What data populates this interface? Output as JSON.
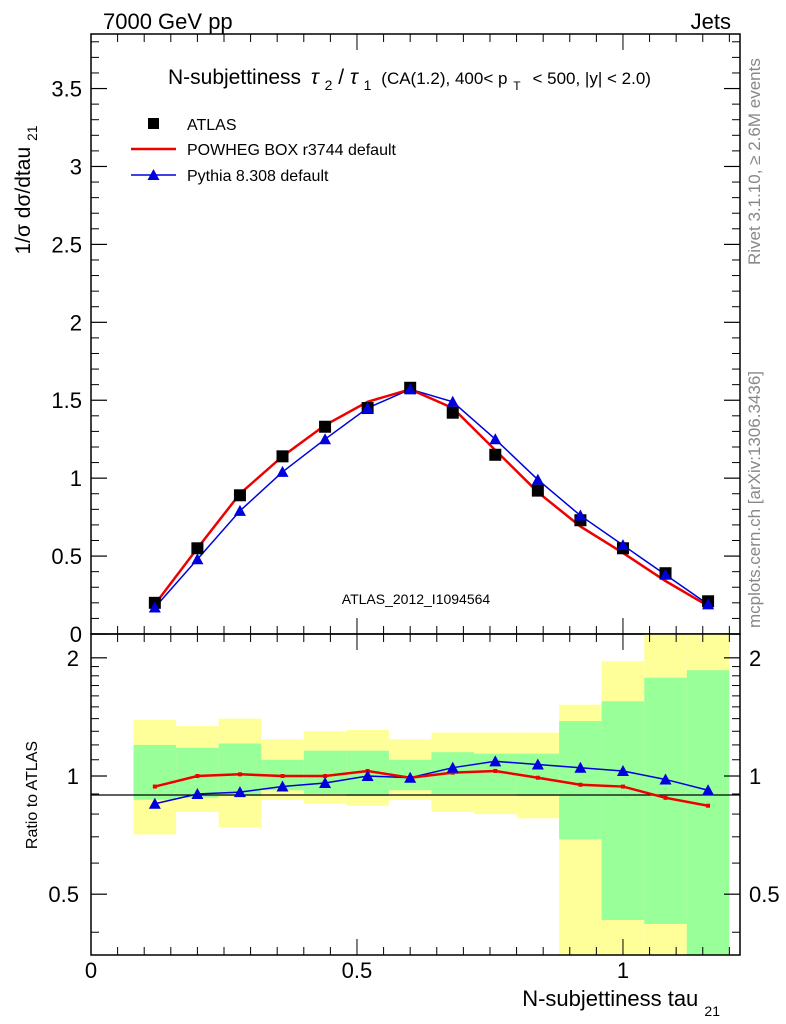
{
  "header": {
    "left": "7000 GeV pp",
    "right": "Jets",
    "plot_title_main": "N-subjettiness",
    "plot_title_tau_num": "2",
    "plot_title_tau_den": "1",
    "plot_title_rest_a": "(CA(1.2), 400< p",
    "plot_title_pt_sub": "T",
    "plot_title_rest_b": "< 500, |y| < 2.0)"
  },
  "side_labels": {
    "rivet": "Rivet 3.1.10, ≥ 2.6M events",
    "mcplots": "mcplots.cern.ch [arXiv:1306.3436]"
  },
  "analysis_label": "ATLAS_2012_I1094564",
  "colors": {
    "data": "#000000",
    "powheg": "#ee0000",
    "pythia": "#0000dd",
    "band_outer": "#ffff99",
    "band_inner": "#99ff99"
  },
  "chart_data": [
    {
      "type": "line",
      "panel": "main",
      "ylabel": "1/σ dσ/dtau",
      "ylabel_sub": "21",
      "xlim": [
        0,
        1.22
      ],
      "ylim": [
        0,
        3.85
      ],
      "x_ticks": [
        {
          "v": 0,
          "label": "0"
        },
        {
          "v": 0.5,
          "label": "0.5"
        },
        {
          "v": 1,
          "label": "1"
        }
      ],
      "y_ticks": [
        {
          "v": 0,
          "label": "0"
        },
        {
          "v": 0.5,
          "label": "0.5"
        },
        {
          "v": 1,
          "label": "1"
        },
        {
          "v": 1.5,
          "label": "1.5"
        },
        {
          "v": 2,
          "label": "2"
        },
        {
          "v": 2.5,
          "label": "2.5"
        },
        {
          "v": 3,
          "label": "3"
        },
        {
          "v": 3.5,
          "label": "3.5"
        }
      ],
      "x": [
        0.12,
        0.2,
        0.28,
        0.36,
        0.44,
        0.52,
        0.6,
        0.68,
        0.76,
        0.84,
        0.92,
        1.0,
        1.08,
        1.16
      ],
      "legend": [
        "ATLAS",
        "POWHEG BOX r3744 default",
        "Pythia 8.308 default"
      ],
      "legend_position": "top-left",
      "series": [
        {
          "name": "ATLAS",
          "style": "markers",
          "values": [
            0.2,
            0.55,
            0.89,
            1.14,
            1.33,
            1.45,
            1.58,
            1.42,
            1.15,
            0.92,
            0.73,
            0.55,
            0.39,
            0.21
          ]
        },
        {
          "name": "POWHEG BOX r3744 default",
          "style": "line",
          "values": [
            0.19,
            0.55,
            0.9,
            1.14,
            1.34,
            1.49,
            1.57,
            1.45,
            1.18,
            0.91,
            0.69,
            0.52,
            0.34,
            0.18
          ]
        },
        {
          "name": "Pythia 8.308 default",
          "style": "triangles",
          "values": [
            0.17,
            0.48,
            0.79,
            1.04,
            1.25,
            1.45,
            1.57,
            1.49,
            1.25,
            0.99,
            0.76,
            0.57,
            0.38,
            0.19
          ]
        }
      ]
    },
    {
      "type": "line",
      "panel": "ratio",
      "ylabel": "Ratio to ATLAS",
      "xlabel": "N-subjettiness tau",
      "xlabel_sub": "21",
      "xlim": [
        0,
        1.22
      ],
      "ylim": [
        0.35,
        2.3
      ],
      "y_ticks": [
        {
          "v": 0.5,
          "label": "0.5"
        },
        {
          "v": 1,
          "label": "1"
        },
        {
          "v": 2,
          "label": "2"
        }
      ],
      "bins": [
        [
          0.08,
          0.16
        ],
        [
          0.16,
          0.24
        ],
        [
          0.24,
          0.32
        ],
        [
          0.32,
          0.4
        ],
        [
          0.4,
          0.48
        ],
        [
          0.48,
          0.56
        ],
        [
          0.56,
          0.64
        ],
        [
          0.64,
          0.72
        ],
        [
          0.72,
          0.8
        ],
        [
          0.8,
          0.88
        ],
        [
          0.88,
          0.96
        ],
        [
          0.96,
          1.04
        ],
        [
          1.04,
          1.12
        ],
        [
          1.12,
          1.2
        ]
      ],
      "band_outer": {
        "low": [
          0.71,
          0.81,
          0.74,
          0.87,
          0.85,
          0.84,
          0.87,
          0.81,
          0.8,
          0.78,
          0.3,
          0.3,
          0.3,
          0.3
        ],
        "high": [
          1.39,
          1.34,
          1.4,
          1.24,
          1.3,
          1.31,
          1.24,
          1.29,
          1.29,
          1.29,
          1.52,
          1.96,
          2.3,
          2.3
        ]
      },
      "band_inner": {
        "low": [
          0.87,
          0.88,
          0.89,
          0.92,
          0.9,
          0.89,
          0.92,
          0.9,
          0.9,
          0.89,
          0.69,
          0.43,
          0.42,
          0.3
        ],
        "high": [
          1.2,
          1.18,
          1.21,
          1.1,
          1.16,
          1.16,
          1.1,
          1.15,
          1.14,
          1.14,
          1.38,
          1.55,
          1.78,
          1.86
        ]
      },
      "x": [
        0.12,
        0.2,
        0.28,
        0.36,
        0.44,
        0.52,
        0.6,
        0.68,
        0.76,
        0.84,
        0.92,
        1.0,
        1.08,
        1.16
      ],
      "series": [
        {
          "name": "POWHEG BOX r3744 default",
          "values": [
            0.94,
            1.0,
            1.01,
            1.0,
            1.0,
            1.03,
            0.99,
            1.02,
            1.03,
            0.99,
            0.95,
            0.94,
            0.88,
            0.84
          ]
        },
        {
          "name": "Pythia 8.308 default",
          "values": [
            0.85,
            0.9,
            0.91,
            0.94,
            0.96,
            1.0,
            0.99,
            1.05,
            1.09,
            1.07,
            1.05,
            1.03,
            0.98,
            0.92
          ]
        }
      ]
    }
  ]
}
